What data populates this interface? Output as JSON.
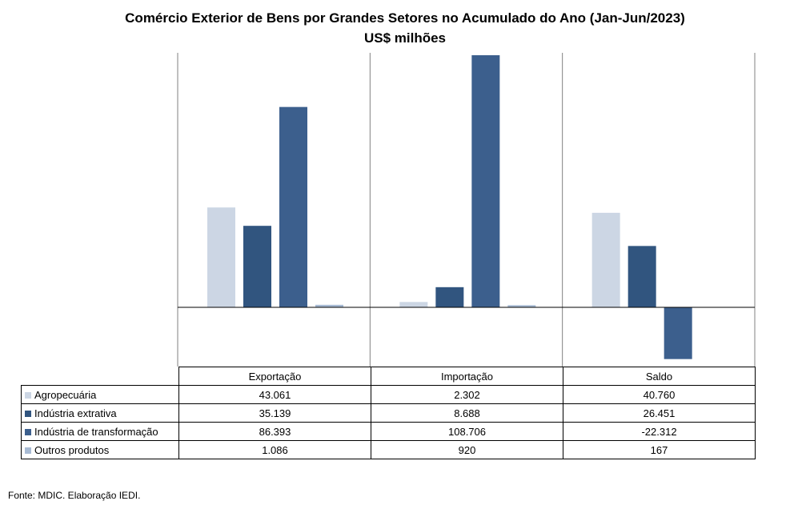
{
  "title_line1": "Comércio Exterior de Bens por Grandes Setores no Acumulado do Ano (Jan-Jun/2023)",
  "title_line2": "US$ milhões",
  "source": "Fonte: MDIC. Elaboração IEDI.",
  "chart_data": {
    "type": "bar",
    "title": "Comércio Exterior de Bens por Grandes Setores no Acumulado do Ano (Jan-Jun/2023)",
    "subtitle": "US$ milhões",
    "categories": [
      "Exportação",
      "Importação",
      "Saldo"
    ],
    "series": [
      {
        "name": "Agropecuária",
        "color": "#ccd6e4",
        "values": [
          43061,
          2302,
          40760
        ],
        "labels": [
          "43.061",
          "2.302",
          "40.760"
        ]
      },
      {
        "name": "Indústria extrativa",
        "color": "#31557f",
        "values": [
          35139,
          8688,
          26451
        ],
        "labels": [
          "35.139",
          "8.688",
          "26.451"
        ]
      },
      {
        "name": "Indústria de transformação",
        "color": "#3c5f8d",
        "values": [
          86393,
          108706,
          -22312
        ],
        "labels": [
          "86.393",
          "108.706",
          "-22.312"
        ]
      },
      {
        "name": "Outros produtos",
        "color": "#a8bbd4",
        "values": [
          1086,
          920,
          167
        ],
        "labels": [
          "1.086",
          "920",
          "167"
        ]
      }
    ],
    "ylim": [
      -25000,
      110000
    ],
    "grid": false,
    "legend": "data-table"
  }
}
